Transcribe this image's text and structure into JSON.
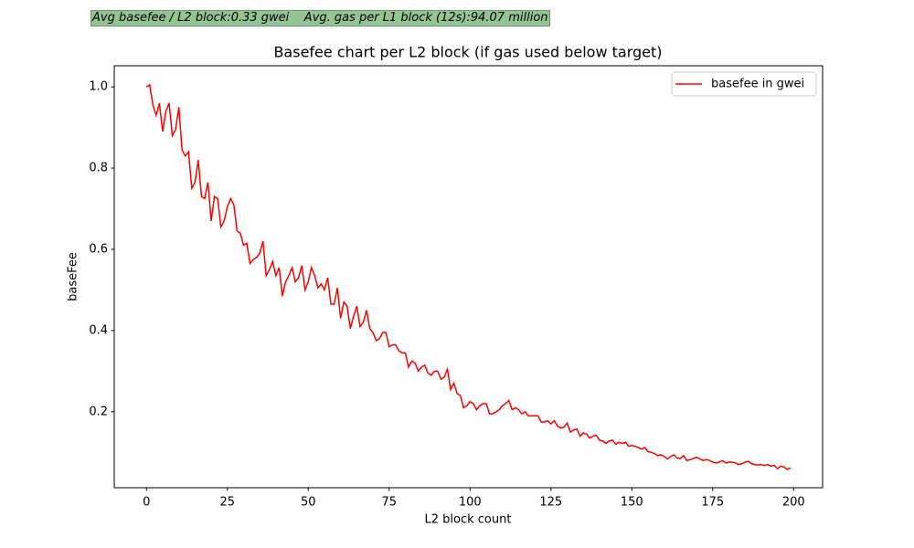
{
  "chart_data": {
    "type": "line",
    "annotation": "Avg basefee / L2 block:0.33 gwei    Avg. gas per L1 block (12s):94.07 million",
    "title": "Basefee chart per L2 block (if gas used below target)",
    "xlabel": "L2 block count",
    "ylabel": "baseFee",
    "x": [
      0,
      1,
      2,
      3,
      4,
      5,
      6,
      7,
      8,
      9,
      10,
      11,
      12,
      13,
      14,
      15,
      16,
      17,
      18,
      19,
      20,
      21,
      22,
      23,
      24,
      25,
      26,
      27,
      28,
      29,
      30,
      31,
      32,
      33,
      34,
      35,
      36,
      37,
      38,
      39,
      40,
      41,
      42,
      43,
      44,
      45,
      46,
      47,
      48,
      49,
      50,
      51,
      52,
      53,
      54,
      55,
      56,
      57,
      58,
      59,
      60,
      61,
      62,
      63,
      64,
      65,
      66,
      67,
      68,
      69,
      70,
      71,
      72,
      73,
      74,
      75,
      76,
      77,
      78,
      79,
      80,
      81,
      82,
      83,
      84,
      85,
      86,
      87,
      88,
      89,
      90,
      91,
      92,
      93,
      94,
      95,
      96,
      97,
      98,
      99,
      100,
      101,
      102,
      103,
      104,
      105,
      106,
      107,
      108,
      109,
      110,
      111,
      112,
      113,
      114,
      115,
      116,
      117,
      118,
      119,
      120,
      121,
      122,
      123,
      124,
      125,
      126,
      127,
      128,
      129,
      130,
      131,
      132,
      133,
      134,
      135,
      136,
      137,
      138,
      139,
      140,
      141,
      142,
      143,
      144,
      145,
      146,
      147,
      148,
      149,
      150,
      151,
      152,
      153,
      154,
      155,
      156,
      157,
      158,
      159,
      160,
      161,
      162,
      163,
      164,
      165,
      166,
      167,
      168,
      169,
      170,
      171,
      172,
      173,
      174,
      175,
      176,
      177,
      178,
      179,
      180,
      181,
      182,
      183,
      184,
      185,
      186,
      187,
      188,
      189,
      190,
      191,
      192,
      193,
      194,
      195,
      196,
      197,
      198,
      199
    ],
    "series": [
      {
        "name": "basefee in gwei",
        "color": "#ff0000",
        "values": [
          1.0,
          1.005,
          0.955,
          0.93,
          0.96,
          0.89,
          0.94,
          0.96,
          0.88,
          0.895,
          0.95,
          0.845,
          0.83,
          0.84,
          0.75,
          0.765,
          0.82,
          0.73,
          0.725,
          0.765,
          0.67,
          0.73,
          0.725,
          0.655,
          0.67,
          0.705,
          0.725,
          0.71,
          0.645,
          0.64,
          0.61,
          0.615,
          0.565,
          0.575,
          0.58,
          0.59,
          0.62,
          0.535,
          0.55,
          0.57,
          0.535,
          0.555,
          0.485,
          0.52,
          0.535,
          0.555,
          0.52,
          0.53,
          0.56,
          0.5,
          0.52,
          0.555,
          0.535,
          0.505,
          0.515,
          0.5,
          0.53,
          0.465,
          0.465,
          0.505,
          0.43,
          0.47,
          0.46,
          0.405,
          0.435,
          0.46,
          0.41,
          0.42,
          0.45,
          0.405,
          0.395,
          0.375,
          0.38,
          0.395,
          0.395,
          0.36,
          0.365,
          0.365,
          0.35,
          0.345,
          0.345,
          0.31,
          0.325,
          0.32,
          0.3,
          0.31,
          0.315,
          0.295,
          0.29,
          0.3,
          0.3,
          0.28,
          0.285,
          0.305,
          0.255,
          0.27,
          0.245,
          0.24,
          0.21,
          0.215,
          0.225,
          0.22,
          0.205,
          0.215,
          0.22,
          0.22,
          0.195,
          0.195,
          0.2,
          0.205,
          0.215,
          0.22,
          0.228,
          0.205,
          0.21,
          0.205,
          0.195,
          0.2,
          0.19,
          0.19,
          0.19,
          0.19,
          0.175,
          0.175,
          0.178,
          0.17,
          0.178,
          0.165,
          0.16,
          0.162,
          0.172,
          0.15,
          0.155,
          0.158,
          0.14,
          0.148,
          0.145,
          0.135,
          0.14,
          0.142,
          0.13,
          0.128,
          0.122,
          0.128,
          0.13,
          0.12,
          0.125,
          0.122,
          0.125,
          0.115,
          0.117,
          0.115,
          0.112,
          0.108,
          0.112,
          0.102,
          0.1,
          0.097,
          0.092,
          0.094,
          0.09,
          0.084,
          0.09,
          0.094,
          0.086,
          0.085,
          0.092,
          0.08,
          0.082,
          0.085,
          0.088,
          0.084,
          0.08,
          0.082,
          0.08,
          0.076,
          0.074,
          0.076,
          0.08,
          0.074,
          0.076,
          0.076,
          0.074,
          0.07,
          0.072,
          0.076,
          0.078,
          0.072,
          0.07,
          0.069,
          0.07,
          0.068,
          0.07,
          0.066,
          0.068,
          0.06,
          0.066,
          0.064,
          0.058,
          0.062
        ]
      }
    ],
    "xlim": [
      -9.95,
      208.95
    ],
    "ylim": [
      0.013,
      1.052
    ],
    "xticks": [
      0,
      25,
      50,
      75,
      100,
      125,
      150,
      175,
      200
    ],
    "yticks": [
      0.2,
      0.4,
      0.6,
      0.8,
      {
        "value": 1,
        "label": "1.0"
      }
    ],
    "legend": "upper right"
  }
}
